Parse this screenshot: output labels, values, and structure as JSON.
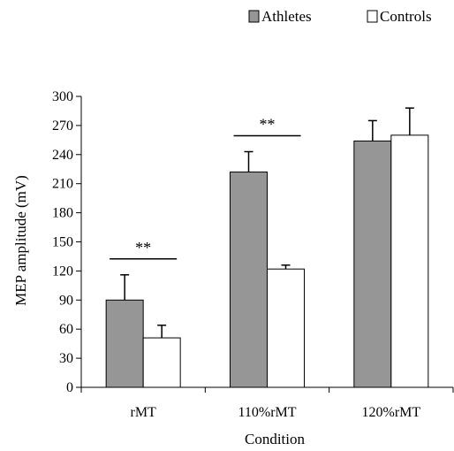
{
  "chart_data": {
    "type": "bar",
    "title": "",
    "xlabel": "Condition",
    "ylabel": "MEP amplitude (mV)",
    "ylim": [
      0,
      300
    ],
    "yticks": [
      0,
      30,
      60,
      90,
      120,
      150,
      180,
      210,
      240,
      270,
      300
    ],
    "categories": [
      "rMT",
      "110%rMT",
      "120%rMT"
    ],
    "series": [
      {
        "name": "Athletes",
        "color": "#969696",
        "values": [
          90,
          222,
          254
        ],
        "errors": [
          26,
          21,
          21
        ]
      },
      {
        "name": "Controls",
        "color": "#ffffff",
        "values": [
          51,
          122,
          260
        ],
        "errors": [
          13,
          4,
          28
        ]
      }
    ],
    "significance": [
      {
        "category": "rMT",
        "label": "**"
      },
      {
        "category": "110%rMT",
        "label": "**"
      }
    ],
    "legend_position": "top-right",
    "grid": false
  }
}
